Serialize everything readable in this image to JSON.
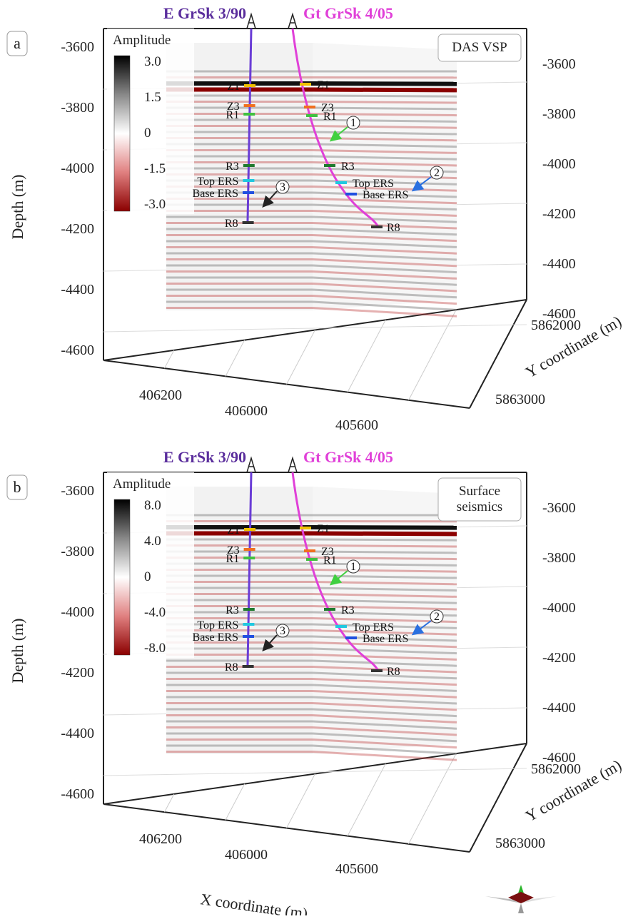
{
  "panels": [
    {
      "id": "a",
      "letter": "a",
      "inset_label": "DAS VSP",
      "inset_lines": [
        "DAS VSP"
      ],
      "colorbar": {
        "title": "Amplitude",
        "ticks": [
          "3.0",
          "1.5",
          "0",
          "-1.5",
          "-3.0"
        ],
        "range": [
          -3.0,
          3.0
        ]
      },
      "depth_ticks_left": [
        "-3600",
        "-3800",
        "-4000",
        "-4200",
        "-4400",
        "-4600"
      ],
      "depth_ticks_right": [
        "-3600",
        "-3800",
        "-4000",
        "-4200",
        "-4400",
        "-4600"
      ],
      "depth_label": "Depth (m)",
      "x_ticks": [
        "406200",
        "406000",
        "405600"
      ],
      "y_ticks": [
        "5862000",
        "5863000"
      ],
      "y_label": "Y coordinate (m)",
      "x_label": "",
      "horizons": {
        "well1": [
          "Z1",
          "Z3",
          "R1",
          "R3",
          "Top ERS",
          "Base ERS",
          "R8"
        ],
        "well2": [
          "Z1",
          "Z3",
          "R1",
          "R3",
          "Top ERS",
          "Base ERS",
          "R8"
        ]
      },
      "callouts": [
        "1",
        "2",
        "3"
      ]
    },
    {
      "id": "b",
      "letter": "b",
      "inset_label": "Surface seismics",
      "inset_lines": [
        "Surface",
        "seismics"
      ],
      "colorbar": {
        "title": "Amplitude",
        "ticks": [
          "8.0",
          "4.0",
          "0",
          "-4.0",
          "-8.0"
        ],
        "range": [
          -8.0,
          8.0
        ]
      },
      "depth_ticks_left": [
        "-3600",
        "-3800",
        "-4000",
        "-4200",
        "-4400",
        "-4600"
      ],
      "depth_ticks_right": [
        "-3600",
        "-3800",
        "-4000",
        "-4200",
        "-4400",
        "-4600"
      ],
      "depth_label": "Depth (m)",
      "x_ticks": [
        "406200",
        "406000",
        "405600"
      ],
      "y_ticks": [
        "5862000",
        "5863000"
      ],
      "y_label": "Y coordinate (m)",
      "x_label": "X coordinate (m)",
      "horizons": {
        "well1": [
          "Z1",
          "Z3",
          "R1",
          "R3",
          "Top ERS",
          "Base ERS",
          "R8"
        ],
        "well2": [
          "Z1",
          "Z3",
          "R1",
          "R3",
          "Top ERS",
          "Base ERS",
          "R8"
        ]
      },
      "callouts": [
        "1",
        "2",
        "3"
      ]
    }
  ],
  "wells": {
    "well1": {
      "name": "E GrSk 3/90",
      "color": "#5a2d9c",
      "trace_color": "#6a3dd6"
    },
    "well2": {
      "name": "Gt GrSk 4/05",
      "color": "#e040d8",
      "trace_color": "#e040d8"
    }
  },
  "horizon_colors": {
    "Z1": "#f0c000",
    "Z3": "#f07020",
    "R1": "#40c040",
    "R3": "#1f7a2f",
    "Top ERS": "#20c8e0",
    "Base ERS": "#2050e0",
    "R8": "#333333"
  },
  "callout_colors": {
    "1": "#40d040",
    "2": "#2a70e0",
    "3": "#222222"
  },
  "chart_data": [
    {
      "type": "heatmap",
      "title": "DAS VSP",
      "zlabel": "Amplitude",
      "zlim": [
        -3.0,
        3.0
      ],
      "ylabel": "Depth (m)",
      "ylim": [
        -4600,
        -3600
      ],
      "xlabel": "",
      "x_ticks": [
        406200,
        406000,
        405600
      ],
      "y_coordinate_label": "Y coordinate (m)",
      "y_coordinate_ticks": [
        5862000,
        5863000
      ],
      "wells": [
        "E GrSk 3/90",
        "Gt GrSk 4/05"
      ],
      "strong_reflector_depth": -3750
    },
    {
      "type": "heatmap",
      "title": "Surface seismics",
      "zlabel": "Amplitude",
      "zlim": [
        -8.0,
        8.0
      ],
      "ylabel": "Depth (m)",
      "ylim": [
        -4600,
        -3600
      ],
      "xlabel": "X coordinate (m)",
      "x_ticks": [
        406200,
        406000,
        405600
      ],
      "y_coordinate_label": "Y coordinate (m)",
      "y_coordinate_ticks": [
        5862000,
        5863000
      ],
      "wells": [
        "E GrSk 3/90",
        "Gt GrSk 4/05"
      ],
      "strong_reflector_depth": -3750
    }
  ]
}
